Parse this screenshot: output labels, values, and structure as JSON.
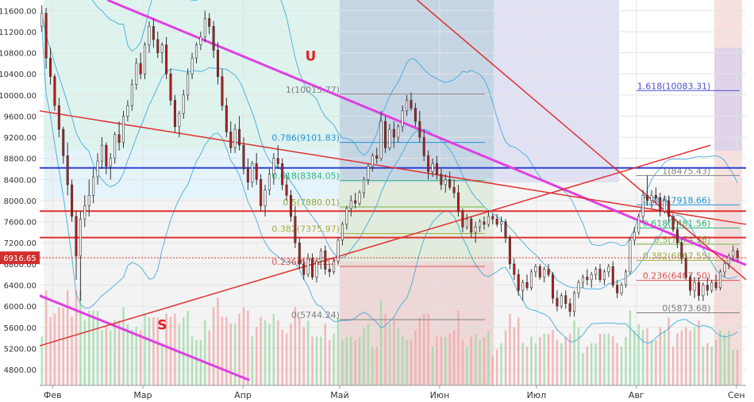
{
  "chart_data": {
    "type": "candlestick",
    "title": "",
    "y_ticks": [
      11600,
      11200,
      10800,
      10400,
      10000,
      9600,
      9200,
      8800,
      8400,
      8000,
      7600,
      7200,
      6800,
      6400,
      6000,
      5600,
      5200,
      4800
    ],
    "y_tick_labels": [
      "11600.00",
      "11200.00",
      "10800.00",
      "10400.00",
      "10000.00",
      "9600.00",
      "9200.00",
      "8800.00",
      "8400.00",
      "8000.00",
      "7600.00",
      "7200.00",
      "6800.00",
      "6400.00",
      "6000.00",
      "5600.00",
      "5200.00",
      "4800.00"
    ],
    "ylim": [
      4500,
      11800
    ],
    "x_months": [
      "Фев",
      "Мар",
      "Апр",
      "Май",
      "Июн",
      "Июл",
      "Авг",
      "Сен"
    ],
    "x_month_days": [
      4,
      32,
      63,
      93,
      124,
      154,
      185,
      216
    ],
    "x_range_days": [
      0,
      219
    ],
    "current_price": {
      "label": "6916.65",
      "value": 6916.65
    },
    "annotations": [
      {
        "text": "U",
        "day": 84,
        "value": 10650,
        "color": "#e02020"
      },
      {
        "text": "S",
        "day": 38,
        "value": 5560,
        "color": "#e02020"
      }
    ],
    "fib_retracement_1": {
      "levels": [
        {
          "ratio_label": "1(10015.77)",
          "value": 10015.77,
          "color": "#808080"
        },
        {
          "ratio_label": "0.786(9101.83)",
          "value": 9101.83,
          "color": "#2196d8"
        },
        {
          "ratio_label": "0.618(8384.05)",
          "value": 8384.05,
          "color": "#2eb87a"
        },
        {
          "ratio_label": "0.5(7880.01)",
          "value": 7880.01,
          "color": "#7cb342"
        },
        {
          "ratio_label": "0.382(7375.97)",
          "value": 7375.97,
          "color": "#a0b040"
        },
        {
          "ratio_label": "0.236(6752.32)",
          "value": 6752.32,
          "color": "#e05050"
        },
        {
          "ratio_label": "0(5744.24)",
          "value": 5744.24,
          "color": "#808080"
        }
      ]
    },
    "fib_retracement_2": {
      "levels": [
        {
          "ratio_label": "1.618(10083.31)",
          "value": 10083.31,
          "color": "#5050d0"
        },
        {
          "ratio_label": "1(8475.43)",
          "value": 8475.43,
          "color": "#808080"
        },
        {
          "ratio_label": "0.786(7918.66)",
          "value": 7918.66,
          "color": "#2196d8"
        },
        {
          "ratio_label": "0.618(7481.56)",
          "value": 7481.56,
          "color": "#2eb87a"
        },
        {
          "ratio_label": "0.5(7174.56)",
          "value": 7174.56,
          "color": "#7cb342"
        },
        {
          "ratio_label": "0.382(6867.55)",
          "value": 6867.55,
          "color": "#a0b040"
        },
        {
          "ratio_label": "0.236(6487.50)",
          "value": 6487.5,
          "color": "#e05050"
        },
        {
          "ratio_label": "0(5873.68)",
          "value": 5873.68,
          "color": "#808080"
        }
      ]
    },
    "horizontal_lines": [
      {
        "value": 7800,
        "color": "#e03030"
      },
      {
        "value": 7300,
        "color": "#e03030"
      },
      {
        "value": 8620,
        "color": "#3040d0"
      }
    ],
    "trendlines": [
      {
        "color": "#e040e0",
        "points": [
          [
            21,
            11800
          ],
          [
            219,
            6780
          ]
        ]
      },
      {
        "color": "#e040e0",
        "points": [
          [
            0,
            6200
          ],
          [
            65,
            4600
          ]
        ]
      },
      {
        "color": "#e03030",
        "points": [
          [
            0,
            5250
          ],
          [
            208,
            9050
          ]
        ]
      },
      {
        "color": "#e03030",
        "points": [
          [
            0,
            9700
          ],
          [
            219,
            7550
          ]
        ]
      },
      {
        "color": "#e03030",
        "points": [
          [
            117,
            11800
          ],
          [
            219,
            6500
          ]
        ]
      }
    ],
    "candles": [
      {
        "o": 11300,
        "h": 11700,
        "l": 11200,
        "c": 11550
      },
      {
        "o": 11550,
        "h": 11650,
        "l": 10500,
        "c": 10700
      },
      {
        "o": 10700,
        "h": 10900,
        "l": 10200,
        "c": 10350
      },
      {
        "o": 10350,
        "h": 10400,
        "l": 9700,
        "c": 9800
      },
      {
        "o": 9800,
        "h": 9950,
        "l": 9200,
        "c": 9350
      },
      {
        "o": 9350,
        "h": 9400,
        "l": 8700,
        "c": 8850
      },
      {
        "o": 8850,
        "h": 9100,
        "l": 8100,
        "c": 8300
      },
      {
        "o": 8300,
        "h": 8400,
        "l": 7600,
        "c": 7700
      },
      {
        "o": 7700,
        "h": 7800,
        "l": 6500,
        "c": 6950
      },
      {
        "o": 6950,
        "h": 7800,
        "l": 6100,
        "c": 7650
      },
      {
        "o": 7650,
        "h": 8100,
        "l": 7500,
        "c": 7900
      },
      {
        "o": 7900,
        "h": 8400,
        "l": 7700,
        "c": 8100
      },
      {
        "o": 8100,
        "h": 8600,
        "l": 7950,
        "c": 8450
      },
      {
        "o": 8450,
        "h": 8900,
        "l": 8300,
        "c": 8750
      },
      {
        "o": 8750,
        "h": 9200,
        "l": 8600,
        "c": 9050
      },
      {
        "o": 9050,
        "h": 9100,
        "l": 8500,
        "c": 8650
      },
      {
        "o": 8650,
        "h": 8900,
        "l": 8400,
        "c": 8800
      },
      {
        "o": 8800,
        "h": 9300,
        "l": 8700,
        "c": 9250
      },
      {
        "o": 9250,
        "h": 9500,
        "l": 8950,
        "c": 9100
      },
      {
        "o": 9100,
        "h": 9700,
        "l": 9000,
        "c": 9600
      },
      {
        "o": 9600,
        "h": 9900,
        "l": 9500,
        "c": 9800
      },
      {
        "o": 9800,
        "h": 10300,
        "l": 9700,
        "c": 10200
      },
      {
        "o": 10200,
        "h": 10700,
        "l": 10100,
        "c": 10600
      },
      {
        "o": 10600,
        "h": 10800,
        "l": 10300,
        "c": 10400
      },
      {
        "o": 10400,
        "h": 11000,
        "l": 10300,
        "c": 10950
      },
      {
        "o": 10950,
        "h": 11400,
        "l": 10800,
        "c": 11300
      },
      {
        "o": 11300,
        "h": 11450,
        "l": 10900,
        "c": 11050
      },
      {
        "o": 11050,
        "h": 11200,
        "l": 10700,
        "c": 10800
      },
      {
        "o": 10800,
        "h": 11000,
        "l": 10600,
        "c": 10950
      },
      {
        "o": 10950,
        "h": 11100,
        "l": 10300,
        "c": 10400
      },
      {
        "o": 10400,
        "h": 10500,
        "l": 9800,
        "c": 9900
      },
      {
        "o": 9900,
        "h": 10000,
        "l": 9300,
        "c": 9400
      },
      {
        "o": 9400,
        "h": 9700,
        "l": 9200,
        "c": 9650
      },
      {
        "o": 9650,
        "h": 10100,
        "l": 9550,
        "c": 10000
      },
      {
        "o": 10000,
        "h": 10500,
        "l": 9900,
        "c": 10400
      },
      {
        "o": 10400,
        "h": 10800,
        "l": 10300,
        "c": 10700
      },
      {
        "o": 10700,
        "h": 11000,
        "l": 10600,
        "c": 10950
      },
      {
        "o": 10950,
        "h": 11200,
        "l": 10850,
        "c": 11100
      },
      {
        "o": 11100,
        "h": 11600,
        "l": 11000,
        "c": 11450
      },
      {
        "o": 11450,
        "h": 11550,
        "l": 11150,
        "c": 11300
      },
      {
        "o": 11300,
        "h": 11400,
        "l": 10700,
        "c": 10850
      },
      {
        "o": 10850,
        "h": 11000,
        "l": 10200,
        "c": 10350
      },
      {
        "o": 10350,
        "h": 10500,
        "l": 9700,
        "c": 9800
      },
      {
        "o": 9800,
        "h": 9950,
        "l": 9200,
        "c": 9300
      },
      {
        "o": 9300,
        "h": 9500,
        "l": 8900,
        "c": 9000
      },
      {
        "o": 9000,
        "h": 9450,
        "l": 8900,
        "c": 9350
      },
      {
        "o": 9350,
        "h": 9600,
        "l": 8950,
        "c": 9050
      },
      {
        "o": 9050,
        "h": 9200,
        "l": 8500,
        "c": 8600
      },
      {
        "o": 8600,
        "h": 8800,
        "l": 8200,
        "c": 8350
      },
      {
        "o": 8350,
        "h": 8750,
        "l": 8250,
        "c": 8700
      },
      {
        "o": 8700,
        "h": 8900,
        "l": 8300,
        "c": 8400
      },
      {
        "o": 8400,
        "h": 8500,
        "l": 7800,
        "c": 7900
      },
      {
        "o": 7900,
        "h": 8300,
        "l": 7700,
        "c": 8200
      },
      {
        "o": 8200,
        "h": 8600,
        "l": 8100,
        "c": 8500
      },
      {
        "o": 8500,
        "h": 8900,
        "l": 8300,
        "c": 8800
      },
      {
        "o": 8800,
        "h": 9050,
        "l": 8600,
        "c": 8700
      },
      {
        "o": 8700,
        "h": 8800,
        "l": 8200,
        "c": 8300
      },
      {
        "o": 8300,
        "h": 8500,
        "l": 8000,
        "c": 8100
      },
      {
        "o": 8100,
        "h": 8200,
        "l": 7600,
        "c": 7700
      },
      {
        "o": 7700,
        "h": 7900,
        "l": 7100,
        "c": 7200
      },
      {
        "o": 7200,
        "h": 7300,
        "l": 6700,
        "c": 6800
      },
      {
        "o": 6800,
        "h": 6900,
        "l": 6500,
        "c": 6600
      },
      {
        "o": 6600,
        "h": 7000,
        "l": 6550,
        "c": 6900
      },
      {
        "o": 6900,
        "h": 7000,
        "l": 6500,
        "c": 6550
      },
      {
        "o": 6550,
        "h": 6900,
        "l": 6450,
        "c": 6850
      },
      {
        "o": 6850,
        "h": 7100,
        "l": 6700,
        "c": 7050
      },
      {
        "o": 7050,
        "h": 7150,
        "l": 6600,
        "c": 6700
      },
      {
        "o": 6700,
        "h": 6800,
        "l": 6550,
        "c": 6650
      },
      {
        "o": 6650,
        "h": 6900,
        "l": 6600,
        "c": 6850
      },
      {
        "o": 6850,
        "h": 7300,
        "l": 6800,
        "c": 7250
      },
      {
        "o": 7250,
        "h": 7600,
        "l": 7150,
        "c": 7550
      },
      {
        "o": 7550,
        "h": 7900,
        "l": 7450,
        "c": 7850
      },
      {
        "o": 7850,
        "h": 8100,
        "l": 7700,
        "c": 8000
      },
      {
        "o": 8000,
        "h": 8150,
        "l": 7850,
        "c": 7950
      },
      {
        "o": 7950,
        "h": 8200,
        "l": 7900,
        "c": 8150
      },
      {
        "o": 8150,
        "h": 8450,
        "l": 8050,
        "c": 8400
      },
      {
        "o": 8400,
        "h": 8700,
        "l": 8300,
        "c": 8650
      },
      {
        "o": 8650,
        "h": 8900,
        "l": 8550,
        "c": 8850
      },
      {
        "o": 8850,
        "h": 9000,
        "l": 8700,
        "c": 8800
      },
      {
        "o": 8800,
        "h": 9700,
        "l": 8750,
        "c": 9500
      },
      {
        "o": 9500,
        "h": 9600,
        "l": 8900,
        "c": 9000
      },
      {
        "o": 9000,
        "h": 9450,
        "l": 8950,
        "c": 9350
      },
      {
        "o": 9350,
        "h": 9500,
        "l": 9000,
        "c": 9200
      },
      {
        "o": 9200,
        "h": 9450,
        "l": 9100,
        "c": 9400
      },
      {
        "o": 9400,
        "h": 9800,
        "l": 9300,
        "c": 9700
      },
      {
        "o": 9700,
        "h": 10000,
        "l": 9600,
        "c": 9900
      },
      {
        "o": 9900,
        "h": 10050,
        "l": 9700,
        "c": 9750
      },
      {
        "o": 9750,
        "h": 9850,
        "l": 9400,
        "c": 9500
      },
      {
        "o": 9500,
        "h": 9700,
        "l": 9100,
        "c": 9200
      },
      {
        "o": 9200,
        "h": 9350,
        "l": 8750,
        "c": 8850
      },
      {
        "o": 8850,
        "h": 8950,
        "l": 8400,
        "c": 8550
      },
      {
        "o": 8550,
        "h": 8800,
        "l": 8450,
        "c": 8700
      },
      {
        "o": 8700,
        "h": 8850,
        "l": 8400,
        "c": 8500
      },
      {
        "o": 8500,
        "h": 8600,
        "l": 8200,
        "c": 8300
      },
      {
        "o": 8300,
        "h": 8500,
        "l": 8150,
        "c": 8400
      },
      {
        "o": 8400,
        "h": 8550,
        "l": 8200,
        "c": 8250
      },
      {
        "o": 8250,
        "h": 8400,
        "l": 8050,
        "c": 8150
      },
      {
        "o": 8150,
        "h": 8300,
        "l": 7700,
        "c": 7800
      },
      {
        "o": 7800,
        "h": 7850,
        "l": 7400,
        "c": 7500
      },
      {
        "o": 7500,
        "h": 7750,
        "l": 7450,
        "c": 7650
      },
      {
        "o": 7650,
        "h": 7700,
        "l": 7300,
        "c": 7400
      },
      {
        "o": 7400,
        "h": 7600,
        "l": 7200,
        "c": 7500
      },
      {
        "o": 7500,
        "h": 7650,
        "l": 7400,
        "c": 7600
      },
      {
        "o": 7600,
        "h": 7700,
        "l": 7450,
        "c": 7550
      },
      {
        "o": 7550,
        "h": 7800,
        "l": 7500,
        "c": 7700
      },
      {
        "o": 7700,
        "h": 7750,
        "l": 7550,
        "c": 7650
      },
      {
        "o": 7650,
        "h": 7750,
        "l": 7500,
        "c": 7550
      },
      {
        "o": 7550,
        "h": 7700,
        "l": 7400,
        "c": 7600
      },
      {
        "o": 7600,
        "h": 7650,
        "l": 7200,
        "c": 7300
      },
      {
        "o": 7300,
        "h": 7350,
        "l": 6700,
        "c": 6800
      },
      {
        "o": 6800,
        "h": 6900,
        "l": 6500,
        "c": 6600
      },
      {
        "o": 6600,
        "h": 6700,
        "l": 6200,
        "c": 6300
      },
      {
        "o": 6300,
        "h": 6500,
        "l": 6100,
        "c": 6450
      },
      {
        "o": 6450,
        "h": 6600,
        "l": 6300,
        "c": 6350
      },
      {
        "o": 6350,
        "h": 6700,
        "l": 6300,
        "c": 6650
      },
      {
        "o": 6650,
        "h": 6800,
        "l": 6550,
        "c": 6750
      },
      {
        "o": 6750,
        "h": 6800,
        "l": 6500,
        "c": 6550
      },
      {
        "o": 6550,
        "h": 6750,
        "l": 6450,
        "c": 6700
      },
      {
        "o": 6700,
        "h": 6800,
        "l": 6550,
        "c": 6600
      },
      {
        "o": 6600,
        "h": 6650,
        "l": 6050,
        "c": 6150
      },
      {
        "o": 6150,
        "h": 6300,
        "l": 5900,
        "c": 6000
      },
      {
        "o": 6000,
        "h": 6250,
        "l": 5950,
        "c": 6200
      },
      {
        "o": 6200,
        "h": 6300,
        "l": 5950,
        "c": 6050
      },
      {
        "o": 6050,
        "h": 6150,
        "l": 5800,
        "c": 5900
      },
      {
        "o": 5900,
        "h": 6300,
        "l": 5800,
        "c": 6250
      },
      {
        "o": 6250,
        "h": 6500,
        "l": 6150,
        "c": 6450
      },
      {
        "o": 6450,
        "h": 6600,
        "l": 6350,
        "c": 6550
      },
      {
        "o": 6550,
        "h": 6700,
        "l": 6400,
        "c": 6500
      },
      {
        "o": 6500,
        "h": 6650,
        "l": 6350,
        "c": 6600
      },
      {
        "o": 6600,
        "h": 6750,
        "l": 6500,
        "c": 6700
      },
      {
        "o": 6700,
        "h": 6800,
        "l": 6450,
        "c": 6500
      },
      {
        "o": 6500,
        "h": 6700,
        "l": 6400,
        "c": 6650
      },
      {
        "o": 6650,
        "h": 6800,
        "l": 6550,
        "c": 6750
      },
      {
        "o": 6750,
        "h": 6850,
        "l": 6350,
        "c": 6400
      },
      {
        "o": 6400,
        "h": 6500,
        "l": 6150,
        "c": 6250
      },
      {
        "o": 6250,
        "h": 6450,
        "l": 6200,
        "c": 6400
      },
      {
        "o": 6400,
        "h": 6700,
        "l": 6350,
        "c": 6650
      },
      {
        "o": 6650,
        "h": 7300,
        "l": 6600,
        "c": 7250
      },
      {
        "o": 7250,
        "h": 7500,
        "l": 7150,
        "c": 7400
      },
      {
        "o": 7400,
        "h": 7750,
        "l": 7350,
        "c": 7700
      },
      {
        "o": 7700,
        "h": 8200,
        "l": 7600,
        "c": 8100
      },
      {
        "o": 8100,
        "h": 8475,
        "l": 7900,
        "c": 8000
      },
      {
        "o": 8000,
        "h": 8200,
        "l": 7850,
        "c": 8100
      },
      {
        "o": 8100,
        "h": 8250,
        "l": 7950,
        "c": 8050
      },
      {
        "o": 8050,
        "h": 8150,
        "l": 7700,
        "c": 7800
      },
      {
        "o": 7800,
        "h": 8100,
        "l": 7750,
        "c": 8000
      },
      {
        "o": 8000,
        "h": 8100,
        "l": 7600,
        "c": 7700
      },
      {
        "o": 7700,
        "h": 7750,
        "l": 7400,
        "c": 7450
      },
      {
        "o": 7450,
        "h": 7600,
        "l": 7100,
        "c": 7200
      },
      {
        "o": 7200,
        "h": 7300,
        "l": 6800,
        "c": 6900
      },
      {
        "o": 6900,
        "h": 7000,
        "l": 6500,
        "c": 6550
      },
      {
        "o": 6550,
        "h": 6600,
        "l": 6200,
        "c": 6300
      },
      {
        "o": 6300,
        "h": 6550,
        "l": 6150,
        "c": 6450
      },
      {
        "o": 6450,
        "h": 6550,
        "l": 6100,
        "c": 6200
      },
      {
        "o": 6200,
        "h": 6450,
        "l": 6100,
        "c": 6400
      },
      {
        "o": 6400,
        "h": 6550,
        "l": 6200,
        "c": 6300
      },
      {
        "o": 6300,
        "h": 6500,
        "l": 6250,
        "c": 6450
      },
      {
        "o": 6450,
        "h": 6600,
        "l": 6300,
        "c": 6350
      },
      {
        "o": 6350,
        "h": 6700,
        "l": 6300,
        "c": 6650
      },
      {
        "o": 6650,
        "h": 6850,
        "l": 6550,
        "c": 6800
      },
      {
        "o": 6800,
        "h": 7000,
        "l": 6700,
        "c": 6950
      },
      {
        "o": 6950,
        "h": 7150,
        "l": 6850,
        "c": 7050
      },
      {
        "o": 7050,
        "h": 7100,
        "l": 6850,
        "c": 6917
      }
    ]
  }
}
